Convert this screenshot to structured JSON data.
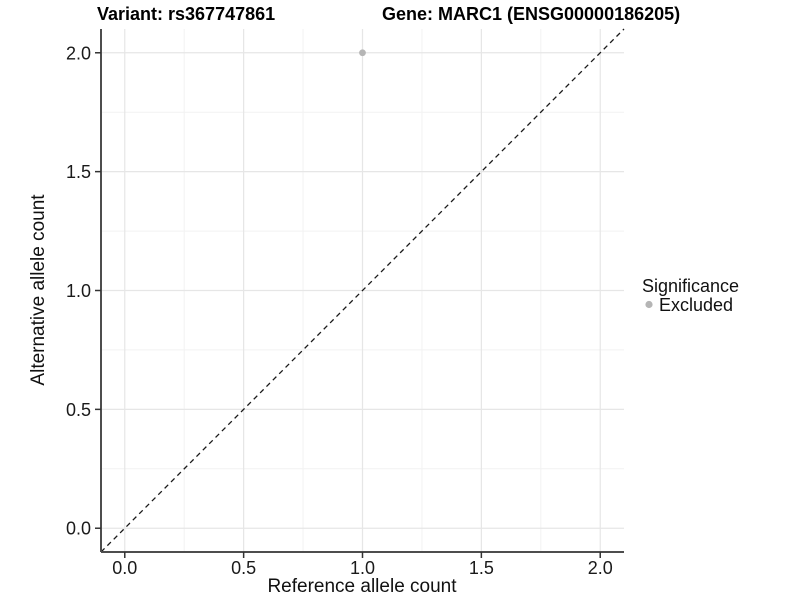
{
  "figure": {
    "background": "#ffffff"
  },
  "chart_data": {
    "type": "scatter",
    "title_left": "Variant: rs367747861",
    "title_right": "Gene: MARC1 (ENSG00000186205)",
    "xlabel": "Reference allele count",
    "ylabel": "Alternative allele count",
    "xlim": [
      -0.1,
      2.1
    ],
    "ylim": [
      -0.1,
      2.1
    ],
    "x_ticks": [
      0.0,
      0.5,
      1.0,
      1.5,
      2.0
    ],
    "y_ticks": [
      0.0,
      0.5,
      1.0,
      1.5,
      2.0
    ],
    "x_tick_labels": [
      "0.0",
      "0.5",
      "1.0",
      "1.5",
      "2.0"
    ],
    "y_tick_labels": [
      "0.0",
      "0.5",
      "1.0",
      "1.5",
      "2.0"
    ],
    "x_minor_ticks": [
      0.25,
      0.75,
      1.25,
      1.75
    ],
    "y_minor_ticks": [
      0.25,
      0.75,
      1.25,
      1.75
    ],
    "grid": true,
    "points": [
      {
        "x": 1.0,
        "y": 2.0,
        "series": "Excluded"
      }
    ],
    "reference_line": {
      "style": "dashed",
      "slope": 1,
      "intercept": 0
    },
    "legend": {
      "title": "Significance",
      "position": "right",
      "items": [
        {
          "label": "Excluded",
          "color": "#b5b5b5",
          "marker": "circle"
        }
      ]
    },
    "colors": {
      "point": "#b5b5b5",
      "grid_major": "#e6e6e6",
      "grid_minor": "#f2f2f2",
      "axis_line": "#4d4d4d",
      "tick_mark": "#333333",
      "reference_line": "#1a1a1a"
    }
  }
}
